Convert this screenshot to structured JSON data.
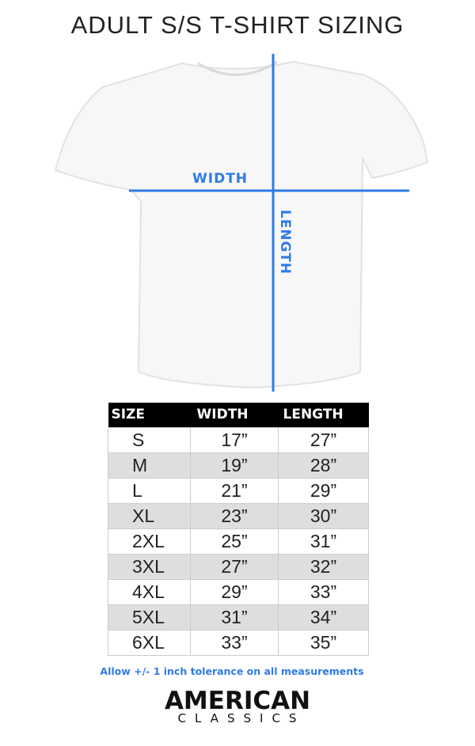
{
  "title": "ADULT S/S T-SHIRT SIZING",
  "measure_labels": {
    "width": "WIDTH",
    "length": "LENGTH"
  },
  "accent_color": "#2f7be8",
  "table": {
    "headers": [
      "SIZE",
      "WIDTH",
      "LENGTH"
    ],
    "rows": [
      [
        "S",
        "17”",
        "27”"
      ],
      [
        "M",
        "19”",
        "28”"
      ],
      [
        "L",
        "21”",
        "29”"
      ],
      [
        "XL",
        "23”",
        "30”"
      ],
      [
        "2XL",
        "25”",
        "31”"
      ],
      [
        "3XL",
        "27”",
        "32”"
      ],
      [
        "4XL",
        "29”",
        "33”"
      ],
      [
        "5XL",
        "31”",
        "34”"
      ],
      [
        "6XL",
        "33”",
        "35”"
      ]
    ]
  },
  "note": "Allow +/- 1 inch tolerance on all measurements",
  "logo": {
    "line1": "AMERICAN",
    "line2": "CLASSICS"
  }
}
